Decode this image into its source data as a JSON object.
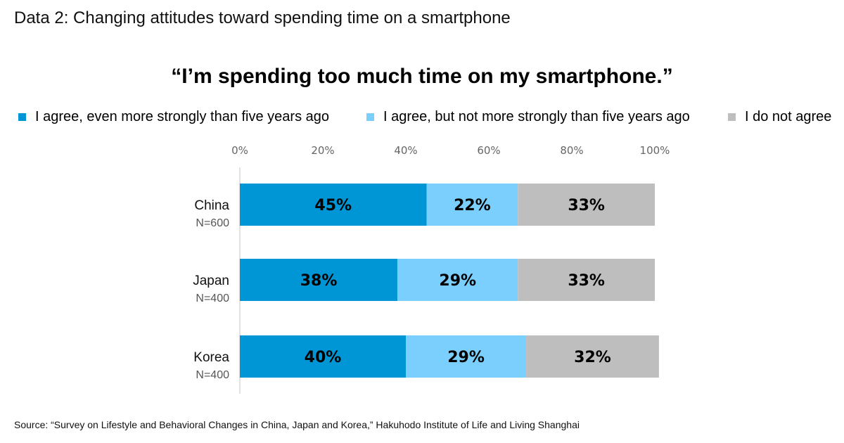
{
  "page_title": "Data 2: Changing attitudes toward spending time on a smartphone",
  "source": "Source: “Survey on Lifestyle and Behavioral Changes in China, Japan and Korea,” Hakuhodo Institute of Life and Living Shanghai",
  "chart_data": {
    "type": "bar",
    "orientation": "horizontal",
    "stacked": true,
    "title": "“I’m spending too much time on my smartphone.”",
    "xlabel": "",
    "ylabel": "",
    "xlim": [
      0,
      100
    ],
    "x_ticks": [
      "0%",
      "20%",
      "40%",
      "60%",
      "80%",
      "100%"
    ],
    "x_tick_values": [
      0,
      20,
      40,
      60,
      80,
      100
    ],
    "grid": false,
    "legend_position": "top",
    "categories": [
      "China",
      "Japan",
      "Korea"
    ],
    "category_sublabels": [
      "N=600",
      "N=400",
      "N=400"
    ],
    "series": [
      {
        "name": "I agree, even more strongly than five years ago",
        "color": "#0096D6",
        "values": [
          45,
          38,
          40
        ],
        "labels": [
          "45%",
          "38%",
          "40%"
        ]
      },
      {
        "name": "I agree, but not more strongly than five years ago",
        "color": "#7ACFFC",
        "values": [
          22,
          29,
          29
        ],
        "labels": [
          "22%",
          "29%",
          "29%"
        ]
      },
      {
        "name": "I do not agree",
        "color": "#BEBEBE",
        "values": [
          33,
          33,
          32
        ],
        "labels": [
          "33%",
          "33%",
          "32%"
        ]
      }
    ]
  }
}
